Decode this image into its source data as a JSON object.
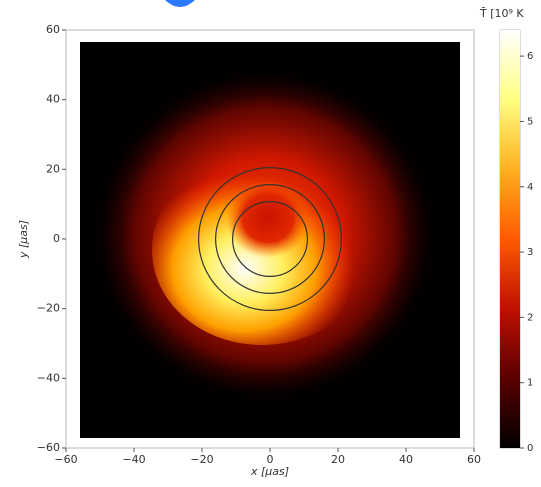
{
  "chart_data": {
    "type": "image",
    "xlabel": "x [μas]",
    "ylabel": "y [μas]",
    "xlim": [
      -60,
      60
    ],
    "ylim": [
      -60,
      60
    ],
    "xticks": [
      {
        "value": -60,
        "label": "−60"
      },
      {
        "value": -40,
        "label": "−40"
      },
      {
        "value": -20,
        "label": "−20"
      },
      0,
      20,
      40,
      60
    ],
    "yticks": [
      {
        "value": -60,
        "label": "−60"
      },
      {
        "value": -40,
        "label": "−40"
      },
      {
        "value": -20,
        "label": "−20"
      },
      0,
      20,
      40,
      60
    ],
    "circle_radii": [
      11,
      16,
      21
    ],
    "colorbar": {
      "label": "T̄  [10⁹ K",
      "lim": [
        0,
        6.4
      ],
      "ticks": [
        0,
        1,
        2,
        3,
        4,
        5,
        6
      ],
      "colormap": [
        "#000000",
        "#5a0000",
        "#c01000",
        "#ff5a00",
        "#ffb020",
        "#ffff80",
        "#ffffff"
      ]
    }
  }
}
